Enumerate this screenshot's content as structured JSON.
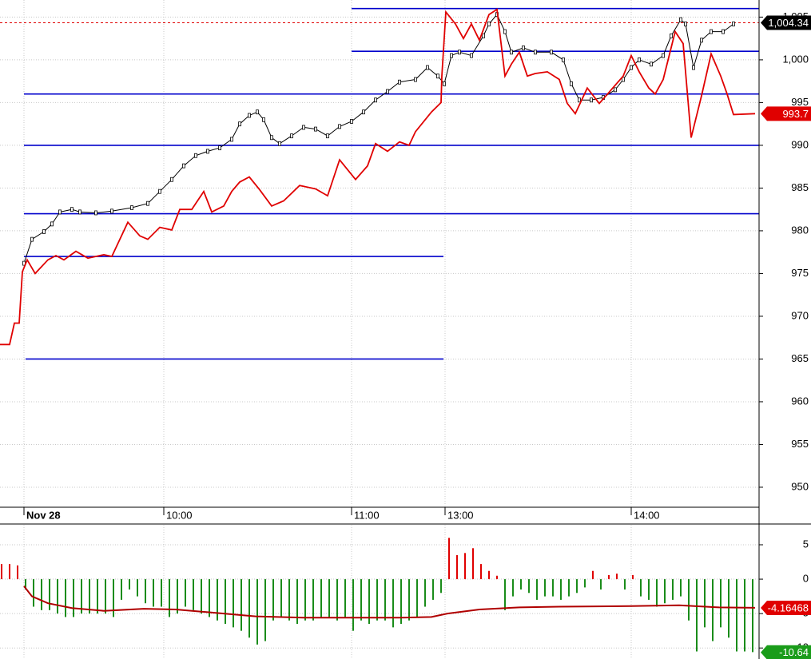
{
  "chart_data": [
    {
      "type": "line",
      "xlim": [
        0,
        190
      ],
      "ylim": [
        947.66,
        1007.0
      ],
      "xticks": [
        {
          "value": 6,
          "label": "Nov 28"
        },
        {
          "value": 41,
          "label": "10:00"
        },
        {
          "value": 88,
          "label": "11:00"
        },
        {
          "value": 111.4,
          "label": "13:00"
        },
        {
          "value": 158,
          "label": "14:00"
        }
      ],
      "yticks": [
        950,
        955,
        960,
        965,
        970,
        975,
        980,
        985,
        990,
        995,
        {
          "value": 1000,
          "label": "1,000"
        },
        {
          "value": 1005,
          "label": "1,005"
        }
      ],
      "grid": true,
      "series": [
        {
          "color": "#000000",
          "markers": true,
          "x": [
            6,
            8,
            11,
            13,
            15,
            18,
            20,
            24,
            28,
            33,
            37,
            40,
            43,
            46,
            49,
            52,
            55,
            58,
            60,
            62.4,
            64.4,
            66,
            68,
            70,
            73,
            76,
            79,
            82,
            85,
            88,
            91,
            94,
            97,
            100,
            104,
            107,
            109.6,
            111.2,
            113,
            115,
            118,
            121,
            122.4,
            124.4,
            126.4,
            128,
            131,
            134,
            138,
            141,
            143,
            145,
            148,
            151,
            154,
            156,
            158,
            160,
            163,
            166,
            168,
            170.4,
            171.6,
            173.6,
            175.6,
            178,
            181,
            183.6
          ],
          "values": [
            976.2,
            979.0,
            979.9,
            980.8,
            982.2,
            982.5,
            982.2,
            982.1,
            982.3,
            982.7,
            983.2,
            984.6,
            986.0,
            987.6,
            988.8,
            989.3,
            989.7,
            990.7,
            992.5,
            993.5,
            993.9,
            993.0,
            990.9,
            990.2,
            991.1,
            992.1,
            991.9,
            991.1,
            992.2,
            992.8,
            993.9,
            995.3,
            996.3,
            997.4,
            997.7,
            999.1,
            998.1,
            997.2,
            1000.5,
            1000.9,
            1000.5,
            1002.8,
            1004.2,
            1005.3,
            1003.3,
            1000.9,
            1001.4,
            1000.9,
            1000.9,
            1000.0,
            997.2,
            995.3,
            995.3,
            995.6,
            996.5,
            997.7,
            999.1,
            1000.0,
            999.5,
            1000.5,
            1002.8,
            1004.7,
            1004.2,
            999.1,
            1002.3,
            1003.3,
            1003.3,
            1004.2
          ]
        },
        {
          "color": "#e00000",
          "markers": false,
          "x": [
            0,
            2.4,
            3.6,
            4.8,
            5.6,
            6.8,
            8.8,
            12,
            14,
            16,
            19,
            22,
            26,
            28,
            32,
            35,
            37,
            40,
            43,
            45,
            48,
            51,
            53,
            56,
            58,
            60,
            62.4,
            65,
            68,
            71,
            75,
            79,
            82,
            85,
            89,
            92,
            94,
            97,
            100,
            102.4,
            104,
            108,
            110.4,
            110.6,
            111.6,
            114,
            116,
            118,
            120,
            122.4,
            124.4,
            126.4,
            128,
            130,
            132,
            134,
            137,
            140,
            142,
            144,
            147,
            150,
            153,
            156,
            158,
            160,
            162.4,
            164,
            166,
            169,
            171,
            173,
            175.6,
            178,
            180.4,
            182,
            183.6,
            189
          ],
          "values": [
            966.7,
            966.7,
            969.2,
            969.2,
            975.2,
            976.6,
            975.0,
            976.6,
            977.1,
            976.6,
            977.6,
            976.8,
            977.2,
            977.0,
            981.0,
            979.4,
            979.0,
            980.4,
            980.1,
            982.5,
            982.5,
            984.6,
            982.2,
            982.9,
            984.6,
            985.7,
            986.3,
            984.8,
            982.9,
            983.5,
            985.3,
            984.9,
            984.1,
            988.3,
            986.0,
            987.6,
            990.2,
            989.3,
            990.4,
            990.0,
            991.6,
            993.9,
            995.0,
            998.1,
            1005.6,
            1004.2,
            1002.5,
            1004.2,
            1002.3,
            1005.3,
            1005.9,
            998.1,
            999.5,
            1000.9,
            998.1,
            998.4,
            998.6,
            997.7,
            994.9,
            993.7,
            996.7,
            994.9,
            996.5,
            998.1,
            1000.5,
            998.6,
            996.7,
            996.0,
            997.7,
            1003.3,
            1001.9,
            990.9,
            995.8,
            1000.7,
            998.1,
            996.0,
            993.6,
            993.7
          ]
        }
      ],
      "levels_color": "#0000cc",
      "levels": [
        {
          "value": 1006,
          "x": [
            88,
            190
          ]
        },
        {
          "value": 1001,
          "x": [
            88,
            190
          ]
        },
        {
          "value": 996,
          "x": [
            6,
            190
          ]
        },
        {
          "value": 990,
          "x": [
            6,
            190
          ]
        },
        {
          "value": 982,
          "x": [
            6,
            190
          ]
        },
        {
          "value": 977,
          "x": [
            6,
            111
          ]
        },
        {
          "value": 965,
          "x": [
            6.4,
            111
          ]
        }
      ],
      "last_labels": [
        {
          "value": 1004.34,
          "label": "1,004.34",
          "color": "#000000",
          "dashed": true
        },
        {
          "value": 993.7,
          "label": "993.7",
          "color": "#e00000",
          "dashed": false
        }
      ]
    },
    {
      "type": "bar",
      "xlim": [
        0,
        190
      ],
      "ylim": [
        -11.6,
        7.9
      ],
      "yticks": [
        5,
        0,
        -5,
        -10
      ],
      "pos_color": "#e00000",
      "neg_color": "#1a8c1a",
      "x": [
        0,
        2,
        4,
        6,
        8,
        10,
        12,
        14,
        16,
        18,
        20,
        22,
        24,
        26,
        28,
        30,
        32,
        34,
        36,
        38,
        40,
        42,
        44,
        46,
        48,
        50,
        52,
        54,
        56,
        58,
        60,
        62,
        64,
        66,
        68,
        70,
        72,
        74,
        76,
        78,
        80,
        82,
        84,
        86,
        88,
        90,
        92,
        94,
        96,
        98,
        100,
        102,
        104,
        106,
        108,
        110,
        112,
        114,
        116,
        118,
        120,
        122,
        124,
        126,
        128,
        130,
        132,
        134,
        136,
        138,
        140,
        142,
        144,
        146,
        148,
        150,
        152,
        154,
        156,
        158,
        160,
        162,
        164,
        166,
        168,
        170,
        172,
        174,
        176,
        178,
        180,
        182,
        184,
        186,
        188
      ],
      "values": [
        2.2,
        2.2,
        2.0,
        -1.5,
        -4,
        -4.5,
        -4.5,
        -5,
        -5.5,
        -5.5,
        -5,
        -5,
        -5,
        -5,
        -5.5,
        -3,
        -1.5,
        -2.5,
        -3.5,
        -4,
        -4,
        -5.5,
        -5,
        -4,
        -4.5,
        -5,
        -5.5,
        -6,
        -6.5,
        -7,
        -7.5,
        -8.5,
        -9.5,
        -9,
        -6,
        -5.5,
        -6,
        -6.5,
        -6,
        -6,
        -5.5,
        -5.5,
        -6,
        -5.5,
        -7.5,
        -6,
        -6.5,
        -6,
        -6,
        -7,
        -6.5,
        -6,
        -5.5,
        -4,
        -3,
        -2,
        6,
        3.5,
        3.8,
        4.5,
        2.2,
        1.2,
        0.5,
        -4.5,
        -2.5,
        -1.5,
        -2,
        -3,
        -2.5,
        -2.5,
        -3,
        -2.5,
        -2,
        -1.2,
        1.2,
        -1.5,
        0.6,
        0.8,
        -1.5,
        0.6,
        -2.5,
        -3,
        -4,
        -3.5,
        -3,
        -2.5,
        -6,
        -10.5,
        -7,
        -9,
        -7,
        -8.5,
        -10.5,
        -10.5,
        -10.6
      ],
      "line": {
        "color": "#b00000",
        "x": [
          6,
          8,
          12,
          18,
          26,
          36,
          44,
          52,
          64,
          76,
          88,
          100,
          108,
          112,
          120,
          130,
          140,
          158,
          170,
          180,
          189
        ],
        "values": [
          -1,
          -2.5,
          -3.5,
          -4.2,
          -4.6,
          -4.3,
          -4.4,
          -4.8,
          -5.4,
          -5.6,
          -5.6,
          -5.6,
          -5.5,
          -5,
          -4.4,
          -4.1,
          -4,
          -3.9,
          -3.8,
          -4.1,
          -4.16
        ]
      },
      "last_labels": [
        {
          "value": -4.16468,
          "label": "-4.16468",
          "color": "#e00000"
        },
        {
          "value": -10.64,
          "label": "-10.64",
          "color": "#1a9c1a"
        }
      ]
    }
  ]
}
